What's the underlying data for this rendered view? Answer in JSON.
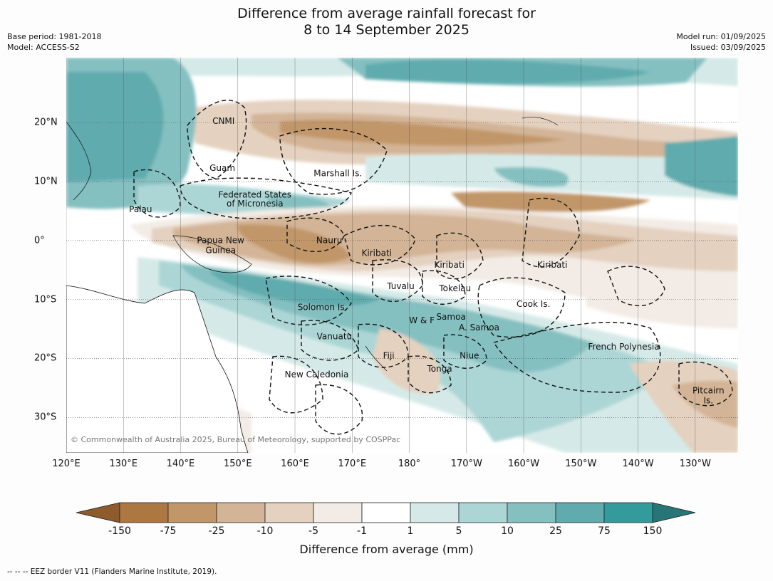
{
  "title": {
    "line1": "Difference from average rainfall forecast for",
    "line2": "8 to 14 September 2025"
  },
  "meta": {
    "base_period": "Base period: 1981-2018",
    "model": "Model: ACCESS-S2",
    "model_run": "Model run: 01/09/2025",
    "issued": "Issued: 03/09/2025"
  },
  "map": {
    "extent": {
      "lon_min": 120,
      "lon_max": 237.5,
      "lat_min": -36,
      "lat_max": 31
    },
    "lon_ticks": [
      {
        "lon": 120,
        "label": "120°E"
      },
      {
        "lon": 130,
        "label": "130°E"
      },
      {
        "lon": 140,
        "label": "140°E"
      },
      {
        "lon": 150,
        "label": "150°E"
      },
      {
        "lon": 160,
        "label": "160°E"
      },
      {
        "lon": 170,
        "label": "170°E"
      },
      {
        "lon": 180,
        "label": "180°"
      },
      {
        "lon": 190,
        "label": "170°W"
      },
      {
        "lon": 200,
        "label": "160°W"
      },
      {
        "lon": 210,
        "label": "150°W"
      },
      {
        "lon": 220,
        "label": "140°W"
      },
      {
        "lon": 230,
        "label": "130°W"
      }
    ],
    "lat_ticks": [
      {
        "lat": 20,
        "label": "20°N"
      },
      {
        "lat": 10,
        "label": "10°N"
      },
      {
        "lat": 0,
        "label": "0°"
      },
      {
        "lat": -10,
        "label": "10°S"
      },
      {
        "lat": -20,
        "label": "20°S"
      },
      {
        "lat": -30,
        "label": "30°S"
      }
    ],
    "places": [
      {
        "name": "CNMI",
        "lon": 147.5,
        "lat": 20.2
      },
      {
        "name": "Guam",
        "lon": 147.3,
        "lat": 12.2
      },
      {
        "name": "Marshall Is.",
        "lon": 167.5,
        "lat": 11.3
      },
      {
        "name": "Federated States",
        "lon": 153.0,
        "lat": 7.7
      },
      {
        "name": "of Micronesia",
        "lon": 153.0,
        "lat": 6.2
      },
      {
        "name": "Palau",
        "lon": 133.0,
        "lat": 5.2
      },
      {
        "name": "Papua New",
        "lon": 147.0,
        "lat": 0.0
      },
      {
        "name": "Guinea",
        "lon": 147.0,
        "lat": -1.7
      },
      {
        "name": "Nauru",
        "lon": 166.0,
        "lat": 0.0
      },
      {
        "name": "Kiribati",
        "lon": 174.3,
        "lat": -2.2
      },
      {
        "name": "Kiribati",
        "lon": 187.0,
        "lat": -4.2
      },
      {
        "name": "Kiribati",
        "lon": 205.0,
        "lat": -4.2
      },
      {
        "name": "Tuvalu",
        "lon": 178.5,
        "lat": -7.8
      },
      {
        "name": "Tokelau",
        "lon": 188.0,
        "lat": -8.2
      },
      {
        "name": "Cook Is.",
        "lon": 201.7,
        "lat": -10.8
      },
      {
        "name": "Solomon Is.",
        "lon": 164.8,
        "lat": -11.4
      },
      {
        "name": "Samoa",
        "lon": 187.3,
        "lat": -13.0
      },
      {
        "name": "W & F",
        "lon": 182.2,
        "lat": -13.6
      },
      {
        "name": "A. Samoa",
        "lon": 192.2,
        "lat": -14.8
      },
      {
        "name": "Vanuatu",
        "lon": 166.9,
        "lat": -16.3
      },
      {
        "name": "Fiji",
        "lon": 176.4,
        "lat": -19.6
      },
      {
        "name": "Niue",
        "lon": 190.5,
        "lat": -19.6
      },
      {
        "name": "French Polynesia",
        "lon": 217.5,
        "lat": -18.1
      },
      {
        "name": "Tonga",
        "lon": 185.3,
        "lat": -21.8
      },
      {
        "name": "New Caledonia",
        "lon": 163.8,
        "lat": -22.8
      },
      {
        "name": "Pitcairn",
        "lon": 232.3,
        "lat": -25.5
      },
      {
        "name": "Is.",
        "lon": 232.3,
        "lat": -27.2
      }
    ],
    "copyright": "© Commonwealth of Australia 2025, Bureau of Meteorology, supported by COSPPac"
  },
  "legend": {
    "title": "Difference from average (mm)",
    "ticks": [
      "-150",
      "-75",
      "-25",
      "-10",
      "-5",
      "-1",
      "1",
      "5",
      "10",
      "25",
      "75",
      "150"
    ],
    "colors": [
      "#8f5a2c",
      "#ad7742",
      "#c19669",
      "#d3b496",
      "#e4d1c0",
      "#f3ece6",
      "#ffffff",
      "#d5eae8",
      "#acd6d5",
      "#85c0c1",
      "#5fabad",
      "#349b9c",
      "#277577"
    ]
  },
  "footnote": "--  --  -- EEZ border V11 (Flanders Marine Institute, 2019)."
}
